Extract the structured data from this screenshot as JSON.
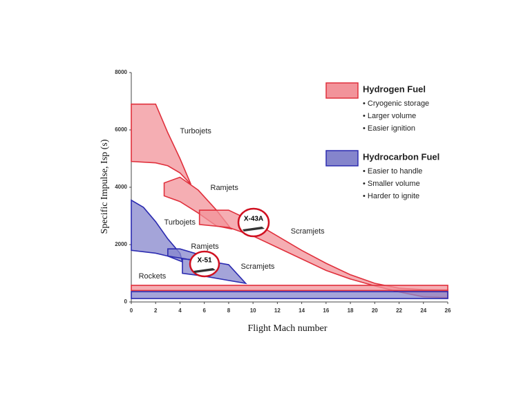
{
  "chart_data": {
    "type": "region",
    "xlabel": "Flight Mach number",
    "ylabel": "Specific Impulse, Isp (s)",
    "xlim": [
      0,
      26
    ],
    "xticks": [
      0,
      2,
      4,
      6,
      8,
      10,
      12,
      14,
      16,
      18,
      20,
      22,
      24,
      26
    ],
    "ylim": [
      0,
      8000
    ],
    "yticks": [
      0,
      2000,
      4000,
      6000,
      8000
    ],
    "series": [
      {
        "name": "Hydrogen Fuel",
        "color": "#e0303c",
        "fill": "#f2939a",
        "notes": [
          "• Cryogenic storage",
          "• Larger volume",
          "• Easier ignition"
        ],
        "regions": [
          {
            "label": "Turbojets",
            "x": [
              0,
              2,
              3,
              4,
              4.9,
              4,
              3,
              2,
              0
            ],
            "y": [
              6900,
              6900,
              5900,
              5000,
              4100,
              4500,
              4750,
              4850,
              4900
            ]
          },
          {
            "label": "Ramjets",
            "x": [
              2.7,
              2.7,
              4,
              5.5,
              7,
              8.2,
              7,
              5.5,
              4
            ],
            "y": [
              3700,
              4150,
              4350,
              3900,
              3200,
              2550,
              2650,
              3100,
              3500
            ]
          },
          {
            "label": "Scramjets",
            "x": [
              5.6,
              8,
              10,
              12,
              14,
              16,
              18,
              20,
              22,
              24,
              26,
              26,
              24,
              22,
              20,
              18,
              16,
              14,
              12,
              10,
              8,
              5.6
            ],
            "y": [
              3200,
              3200,
              2800,
              2300,
              1800,
              1350,
              950,
              650,
              480,
              430,
              420,
              150,
              180,
              350,
              560,
              800,
              1100,
              1500,
              1900,
              2300,
              2600,
              2700
            ]
          },
          {
            "x": [
              0,
              26,
              26,
              0
            ],
            "y": [
              400,
              400,
              580,
              580
            ]
          }
        ]
      },
      {
        "name": "Hydrocarbon Fuel",
        "color": "#2b2bb0",
        "fill": "#8585cc",
        "notes": [
          "• Easier to handle",
          "• Smaller volume",
          "• Harder to ignite"
        ],
        "regions": [
          {
            "label": "Turbojets",
            "x": [
              0,
              1,
              2,
              3,
              4,
              4.2,
              3,
              2,
              0
            ],
            "y": [
              3550,
              3300,
              2800,
              2200,
              1700,
              1400,
              1600,
              1700,
              1800
            ]
          },
          {
            "label": "Ramjets",
            "x": [
              3,
              4,
              6,
              6.8,
              5.5,
              4.5,
              3
            ],
            "y": [
              1850,
              1850,
              1600,
              1300,
              1350,
              1500,
              1600
            ]
          },
          {
            "label": "Scramjets",
            "x": [
              4.2,
              6,
              8,
              9.4,
              8,
              6,
              4.2
            ],
            "y": [
              1500,
              1450,
              1300,
              650,
              750,
              900,
              1000
            ]
          },
          {
            "label": "Rockets",
            "x": [
              0,
              26,
              26,
              0
            ],
            "y": [
              120,
              120,
              360,
              360
            ]
          }
        ]
      }
    ],
    "annotations": [
      {
        "text": "X-43A"
      },
      {
        "text": "X-51"
      }
    ]
  }
}
